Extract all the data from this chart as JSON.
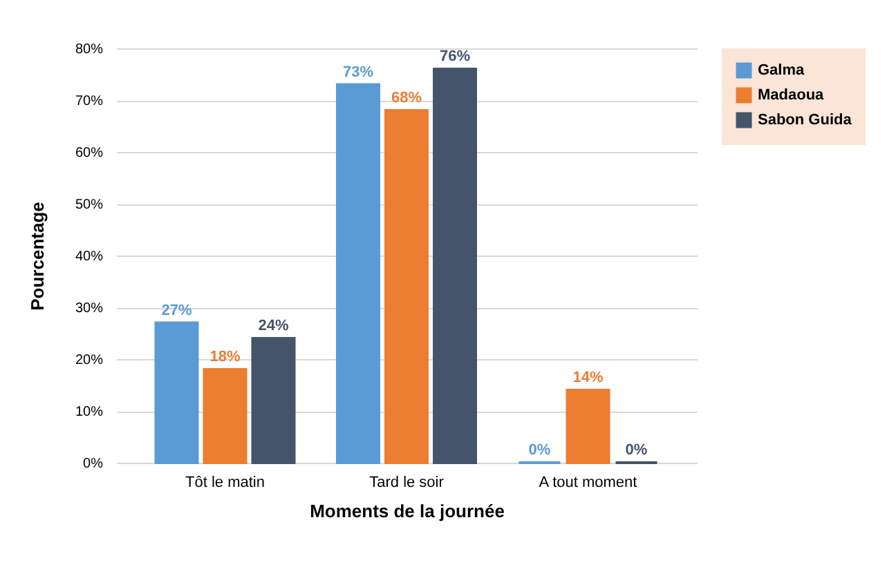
{
  "chart_data": {
    "type": "bar",
    "xlabel": "Moments de la journée",
    "ylabel": "Pourcentage",
    "categories": [
      "Tôt le matin",
      "Tard le soir",
      "A tout moment"
    ],
    "series": [
      {
        "name": "Galma",
        "color": "#5b9bd5",
        "values": [
          27,
          73,
          0
        ],
        "value_labels": [
          "27%",
          "73%",
          "0%"
        ]
      },
      {
        "name": "Madaoua",
        "color": "#ed7d31",
        "values": [
          18,
          68,
          14
        ],
        "value_labels": [
          "18%",
          "68%",
          "14%"
        ]
      },
      {
        "name": "Sabon Guida",
        "color": "#44546a",
        "values": [
          24,
          76,
          0
        ],
        "value_labels": [
          "24%",
          "76%",
          "0%"
        ]
      }
    ],
    "ylim": [
      0,
      80
    ],
    "yticks": [
      {
        "value": 0,
        "label": "0%"
      },
      {
        "value": 10,
        "label": "10%"
      },
      {
        "value": 20,
        "label": "20%"
      },
      {
        "value": 30,
        "label": "30%"
      },
      {
        "value": 40,
        "label": "40%"
      },
      {
        "value": 50,
        "label": "50%"
      },
      {
        "value": 60,
        "label": "60%"
      },
      {
        "value": 70,
        "label": "70%"
      },
      {
        "value": 80,
        "label": "80%"
      }
    ],
    "grid": "y",
    "legend": "right"
  }
}
